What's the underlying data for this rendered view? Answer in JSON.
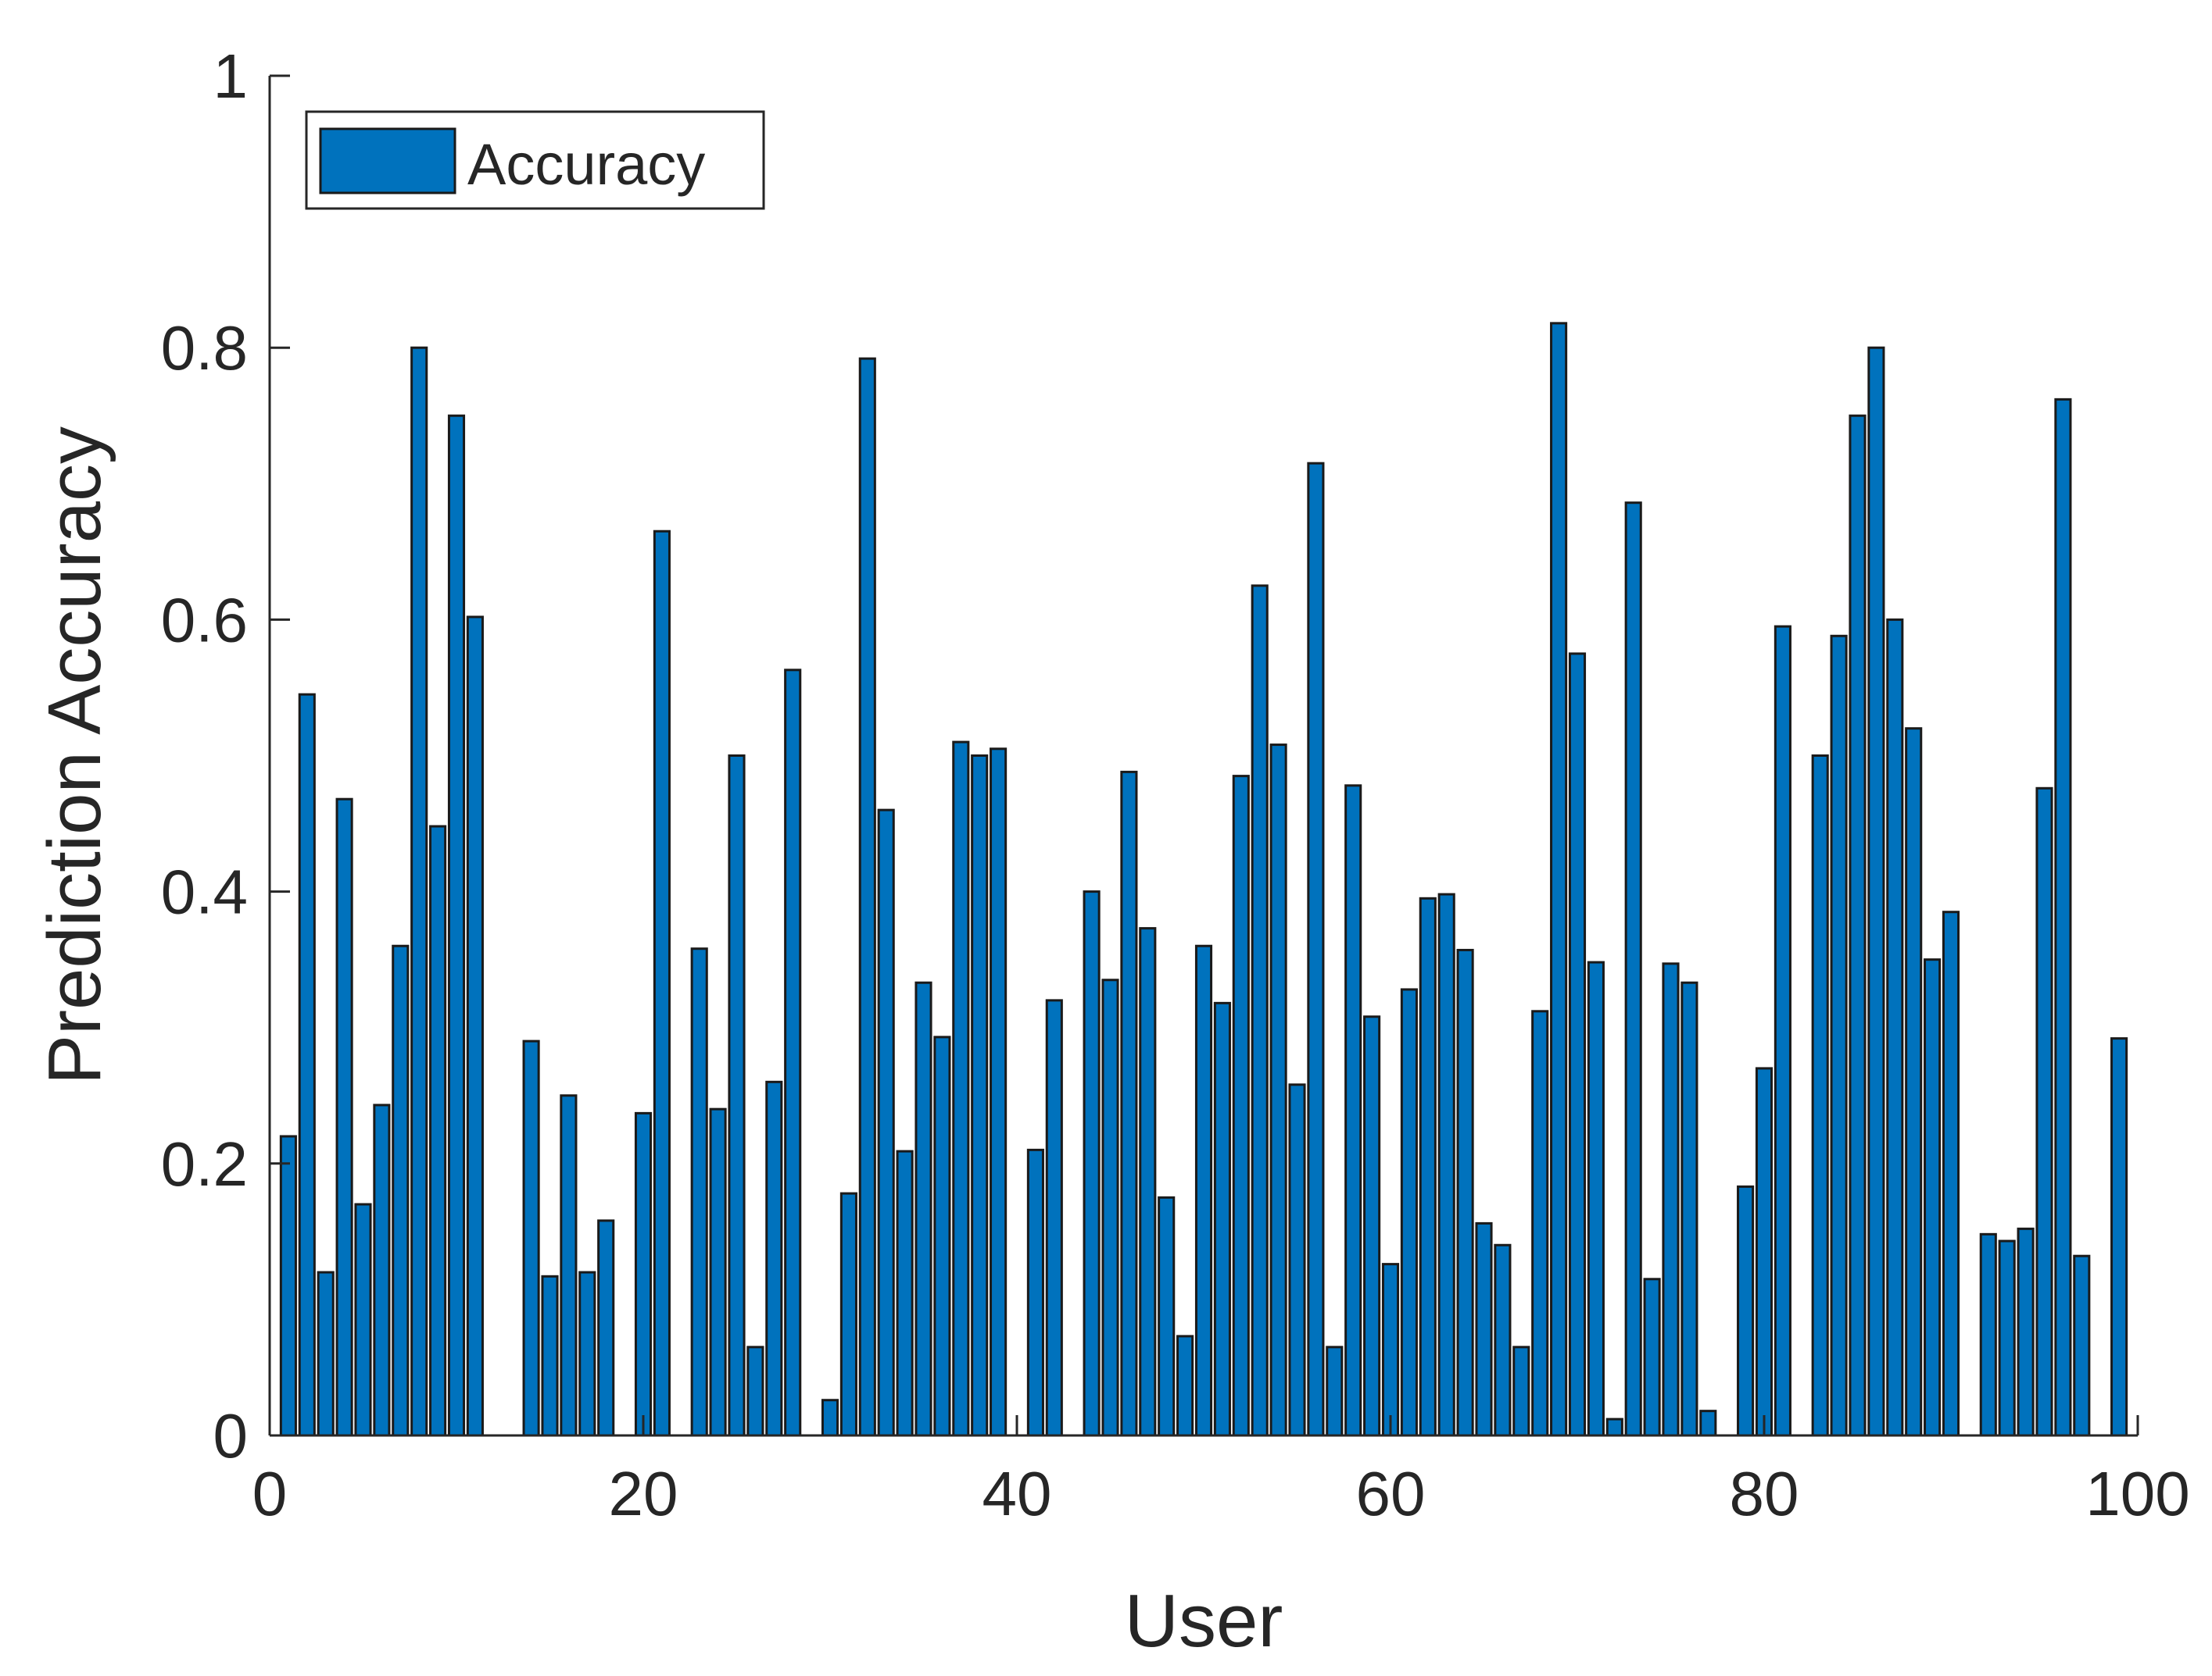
{
  "chart_data": {
    "type": "bar",
    "xlabel": "User",
    "ylabel": "Prediction Accuracy",
    "xlim": [
      0,
      100
    ],
    "ylim": [
      0,
      1
    ],
    "xticks": [
      0,
      20,
      40,
      60,
      80,
      100
    ],
    "yticks": [
      0,
      0.2,
      0.4,
      0.6,
      0.8,
      1
    ],
    "ytick_labels": [
      "0",
      "0.2",
      "0.4",
      "0.6",
      "0.8",
      "1"
    ],
    "grid": false,
    "legend_position": "top-left",
    "bar_color": "#0072BD",
    "series": [
      {
        "name": "Accuracy",
        "x": [
          1,
          2,
          3,
          4,
          5,
          6,
          7,
          8,
          9,
          10,
          11,
          12,
          13,
          14,
          15,
          16,
          17,
          18,
          19,
          20,
          21,
          22,
          23,
          24,
          25,
          26,
          27,
          28,
          29,
          30,
          31,
          32,
          33,
          34,
          35,
          36,
          37,
          38,
          39,
          40,
          41,
          42,
          43,
          44,
          45,
          46,
          47,
          48,
          49,
          50,
          51,
          52,
          53,
          54,
          55,
          56,
          57,
          58,
          59,
          60,
          61,
          62,
          63,
          64,
          65,
          66,
          67,
          68,
          69,
          70,
          71,
          72,
          73,
          74,
          75,
          76,
          77,
          78,
          79,
          80,
          81,
          82,
          83,
          84,
          85,
          86,
          87,
          88,
          89,
          90,
          91,
          92,
          93,
          94,
          95,
          96,
          97,
          98,
          99,
          100
        ],
        "values": [
          0.22,
          0.545,
          0.12,
          0.468,
          0.17,
          0.243,
          0.36,
          0.8,
          0.448,
          0.75,
          0.602,
          0,
          0,
          0.29,
          0.117,
          0.25,
          0.12,
          0.158,
          0,
          0.237,
          0.665,
          0,
          0.358,
          0.24,
          0.5,
          0.065,
          0.26,
          0.563,
          0,
          0.026,
          0.178,
          0.792,
          0.46,
          0.209,
          0.333,
          0.293,
          0.51,
          0.5,
          0.505,
          0,
          0.21,
          0.32,
          0,
          0.4,
          0.335,
          0.488,
          0.373,
          0.175,
          0.073,
          0.36,
          0.318,
          0.485,
          0.625,
          0.508,
          0.258,
          0.715,
          0.065,
          0.478,
          0.308,
          0.126,
          0.328,
          0.395,
          0.398,
          0.357,
          0.156,
          0.14,
          0.065,
          0.312,
          0.818,
          0.575,
          0.348,
          0.012,
          0.686,
          0.115,
          0.347,
          0.333,
          0.018,
          0,
          0.183,
          0.27,
          0.595,
          0,
          0.5,
          0.588,
          0.75,
          0.8,
          0.6,
          0.52,
          0.35,
          0.385,
          0,
          0.148,
          0.143,
          0.152,
          0.476,
          0.762,
          0.132,
          0,
          0.292,
          0
        ]
      }
    ]
  }
}
